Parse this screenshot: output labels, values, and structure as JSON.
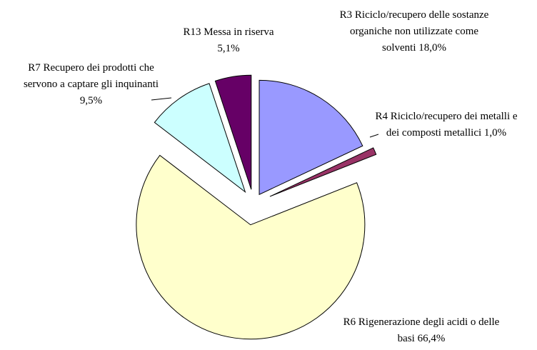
{
  "chart_data": {
    "type": "pie",
    "categories": [
      "R3 Riciclo/recupero delle sostanze organiche non utilizzate come solventi",
      "R4 Riciclo/recupero dei metalli e dei composti metallici",
      "R6 Rigenerazione degli acidi o delle basi",
      "R7 Recupero dei prodotti che servono a captare gli inquinanti",
      "R13 Messa in riserva"
    ],
    "values": [
      18.0,
      1.0,
      66.4,
      9.5,
      5.1
    ],
    "value_labels": [
      "18,0%",
      "1,0%",
      "66,4%",
      "9,5%",
      "5,1%"
    ],
    "colors": [
      "#9999ff",
      "#993366",
      "#ffffcc",
      "#ccffff",
      "#660066"
    ]
  }
}
